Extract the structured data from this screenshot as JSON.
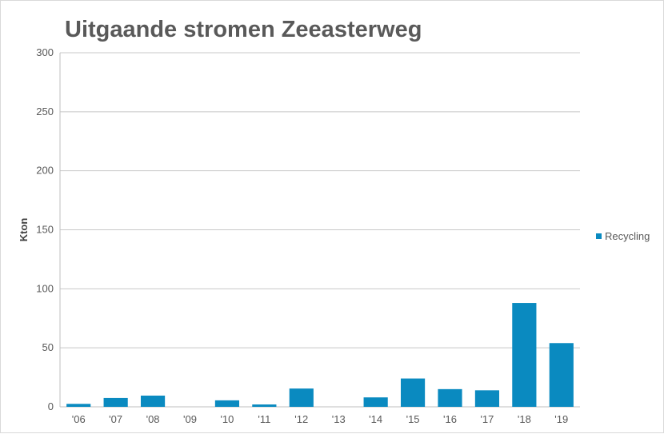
{
  "chart_data": {
    "type": "bar",
    "title": "Uitgaande stromen Zeeasterweg",
    "ylabel": "Kton",
    "xlabel": "",
    "ylim": [
      0,
      300
    ],
    "yticks": [
      0,
      50,
      100,
      150,
      200,
      250,
      300
    ],
    "grid": true,
    "legend_position": "right",
    "categories": [
      "'06",
      "'07",
      "'08",
      "'09",
      "'10",
      "'11",
      "'12",
      "'13",
      "'14",
      "'15",
      "'16",
      "'17",
      "'18",
      "'19"
    ],
    "series": [
      {
        "name": "Recycling",
        "color": "#0a8ac0",
        "values": [
          2.5,
          7.5,
          9.5,
          0,
          5.5,
          2,
          15.5,
          0,
          8,
          24,
          15,
          14,
          88,
          54
        ]
      }
    ]
  }
}
